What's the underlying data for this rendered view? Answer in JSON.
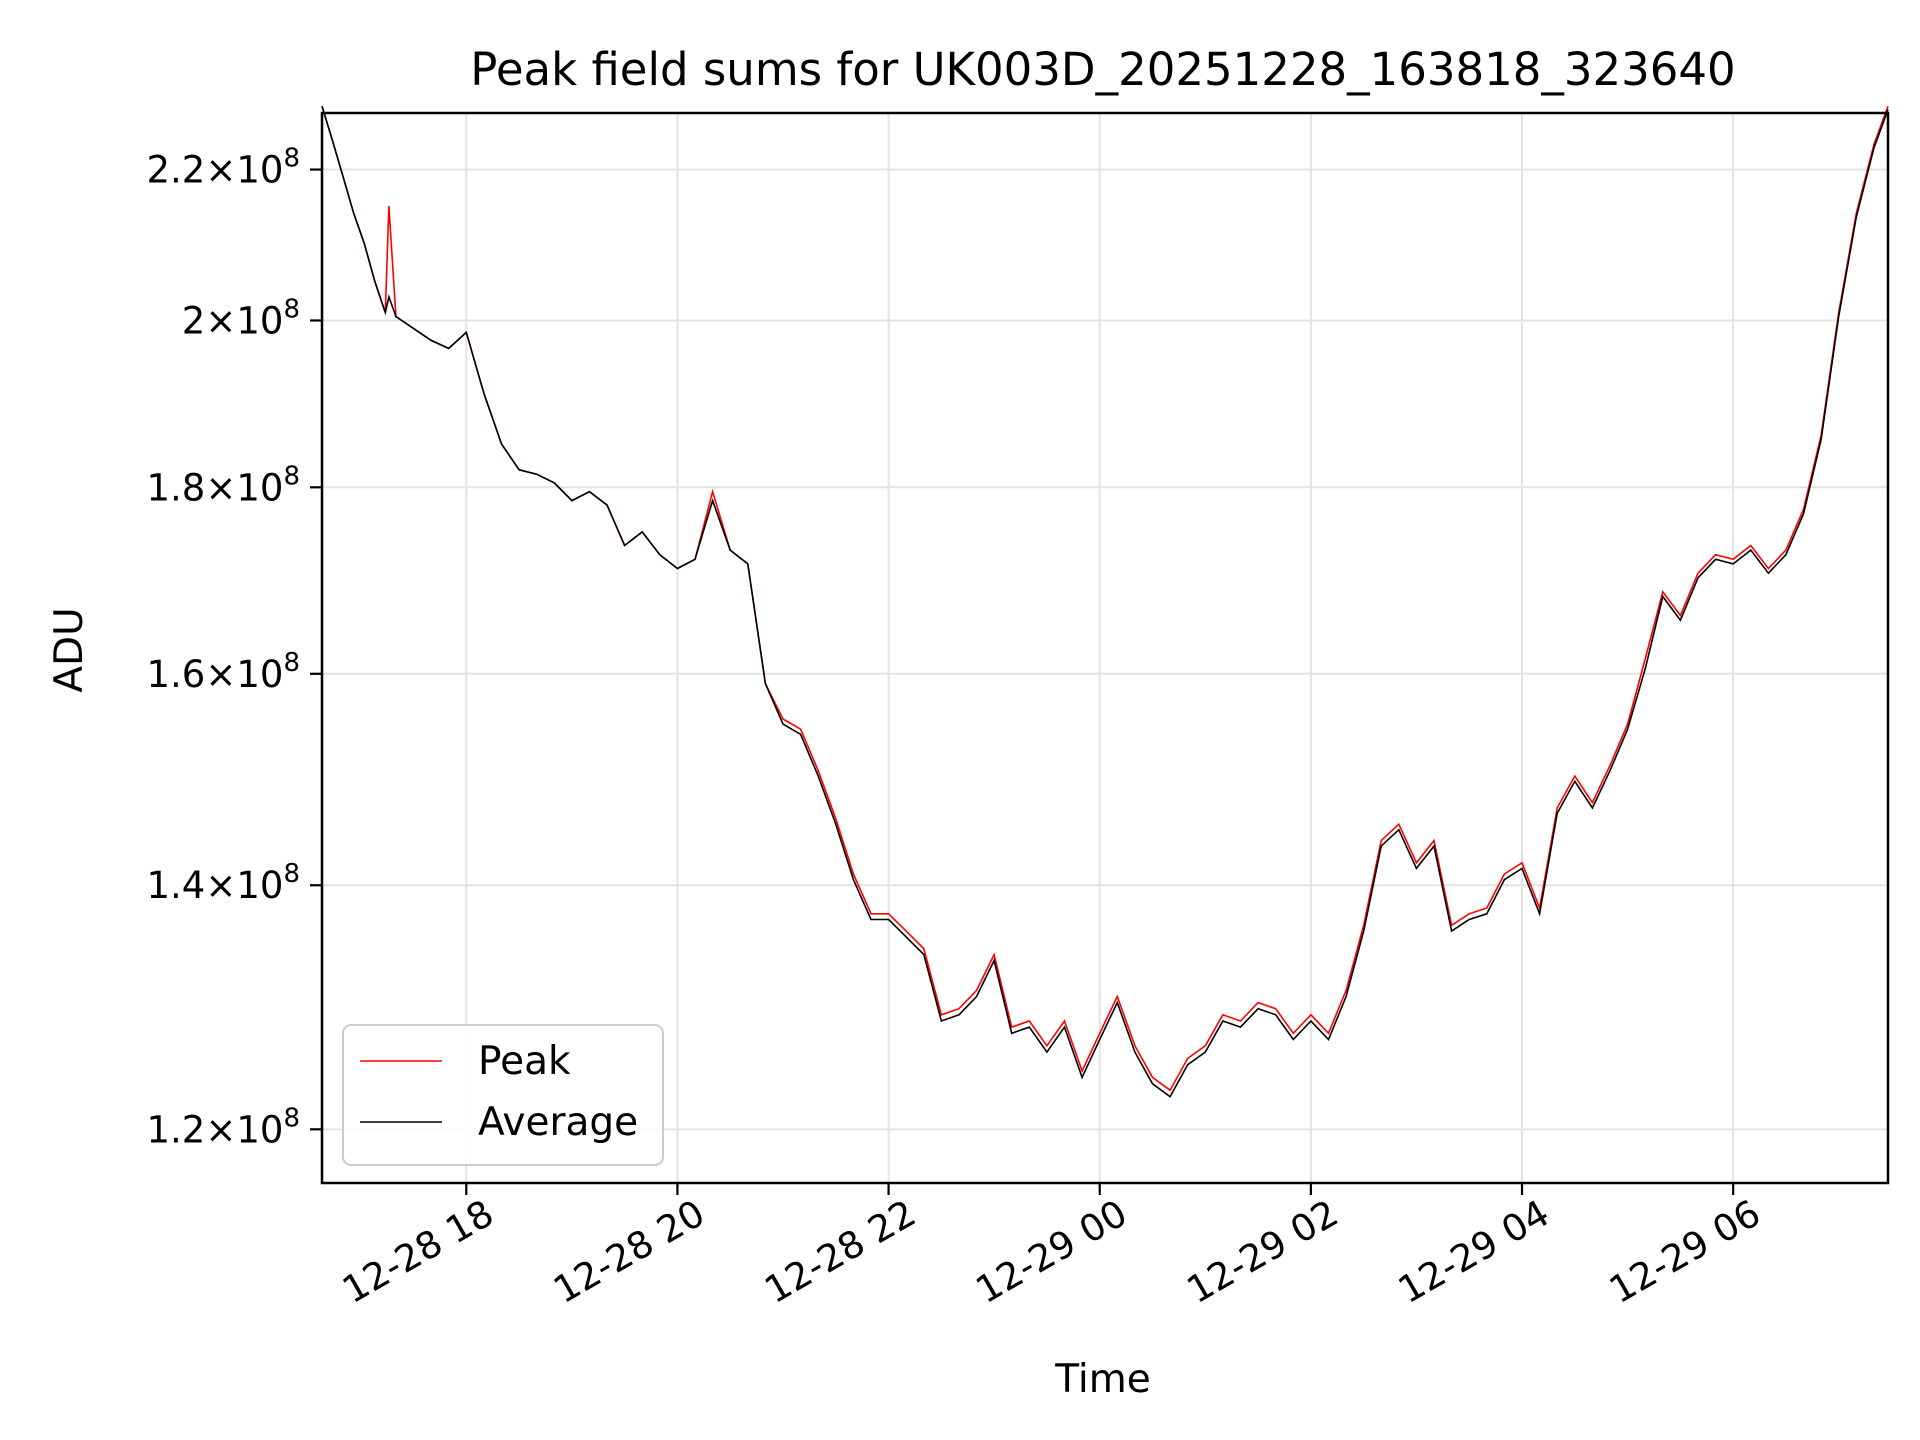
{
  "chart_data": {
    "type": "line",
    "title": "Peak field sums for UK003D_20251228_163818_323640",
    "xlabel": "Time",
    "ylabel": "ADU",
    "x_unit": "datetime",
    "xlim": [
      "2025-12-28 16:38",
      "2025-12-29 07:28"
    ],
    "ylim": [
      116000000,
      228000000
    ],
    "y_scale": "log",
    "grid": true,
    "legend_position": "lower-left",
    "x_ticks": [
      {
        "value": "2025-12-28 18:00",
        "label": "12-28 18"
      },
      {
        "value": "2025-12-28 20:00",
        "label": "12-28 20"
      },
      {
        "value": "2025-12-28 22:00",
        "label": "12-28 22"
      },
      {
        "value": "2025-12-29 00:00",
        "label": "12-29 00"
      },
      {
        "value": "2025-12-29 02:00",
        "label": "12-29 02"
      },
      {
        "value": "2025-12-29 04:00",
        "label": "12-29 04"
      },
      {
        "value": "2025-12-29 06:00",
        "label": "12-29 06"
      }
    ],
    "y_ticks": [
      {
        "value": 120000000,
        "mantissa": "1.2",
        "base": "10",
        "exponent": "8"
      },
      {
        "value": 140000000,
        "mantissa": "1.4",
        "base": "10",
        "exponent": "8"
      },
      {
        "value": 160000000,
        "mantissa": "1.6",
        "base": "10",
        "exponent": "8"
      },
      {
        "value": 180000000,
        "mantissa": "1.8",
        "base": "10",
        "exponent": "8"
      },
      {
        "value": 200000000,
        "mantissa": "2",
        "base": "10",
        "exponent": "8"
      },
      {
        "value": 220000000,
        "mantissa": "2.2",
        "base": "10",
        "exponent": "8"
      }
    ],
    "series": [
      {
        "name": "Peak",
        "color": "#ff0000",
        "x": [
          "2025-12-28 16:38",
          "2025-12-28 16:44",
          "2025-12-28 16:50",
          "2025-12-28 16:56",
          "2025-12-28 17:02",
          "2025-12-28 17:08",
          "2025-12-28 17:14",
          "2025-12-28 17:16",
          "2025-12-28 17:20",
          "2025-12-28 17:30",
          "2025-12-28 17:40",
          "2025-12-28 17:50",
          "2025-12-28 18:00",
          "2025-12-28 18:10",
          "2025-12-28 18:20",
          "2025-12-28 18:30",
          "2025-12-28 18:40",
          "2025-12-28 18:50",
          "2025-12-28 19:00",
          "2025-12-28 19:10",
          "2025-12-28 19:20",
          "2025-12-28 19:30",
          "2025-12-28 19:40",
          "2025-12-28 19:50",
          "2025-12-28 20:00",
          "2025-12-28 20:10",
          "2025-12-28 20:20",
          "2025-12-28 20:30",
          "2025-12-28 20:40",
          "2025-12-28 20:50",
          "2025-12-28 21:00",
          "2025-12-28 21:10",
          "2025-12-28 21:20",
          "2025-12-28 21:30",
          "2025-12-28 21:40",
          "2025-12-28 21:50",
          "2025-12-28 22:00",
          "2025-12-28 22:10",
          "2025-12-28 22:20",
          "2025-12-28 22:30",
          "2025-12-28 22:40",
          "2025-12-28 22:50",
          "2025-12-28 23:00",
          "2025-12-28 23:10",
          "2025-12-28 23:20",
          "2025-12-28 23:30",
          "2025-12-28 23:40",
          "2025-12-28 23:50",
          "2025-12-29 00:00",
          "2025-12-29 00:10",
          "2025-12-29 00:20",
          "2025-12-29 00:30",
          "2025-12-29 00:40",
          "2025-12-29 00:50",
          "2025-12-29 01:00",
          "2025-12-29 01:10",
          "2025-12-29 01:20",
          "2025-12-29 01:30",
          "2025-12-29 01:40",
          "2025-12-29 01:50",
          "2025-12-29 02:00",
          "2025-12-29 02:10",
          "2025-12-29 02:20",
          "2025-12-29 02:30",
          "2025-12-29 02:40",
          "2025-12-29 02:50",
          "2025-12-29 03:00",
          "2025-12-29 03:10",
          "2025-12-29 03:20",
          "2025-12-29 03:30",
          "2025-12-29 03:40",
          "2025-12-29 03:50",
          "2025-12-29 04:00",
          "2025-12-29 04:10",
          "2025-12-29 04:20",
          "2025-12-29 04:30",
          "2025-12-29 04:40",
          "2025-12-29 04:50",
          "2025-12-29 05:00",
          "2025-12-29 05:10",
          "2025-12-29 05:20",
          "2025-12-29 05:30",
          "2025-12-29 05:40",
          "2025-12-29 05:50",
          "2025-12-29 06:00",
          "2025-12-29 06:10",
          "2025-12-29 06:20",
          "2025-12-29 06:30",
          "2025-12-29 06:40",
          "2025-12-29 06:50",
          "2025-12-29 07:00",
          "2025-12-29 07:10",
          "2025-12-29 07:20",
          "2025-12-29 07:28"
        ],
        "values": [
          229000000,
          224000000,
          219000000,
          214000000,
          210000000,
          205000000,
          201000000,
          215000000,
          200500000,
          199000000,
          197500000,
          196500000,
          198500000,
          191000000,
          185000000,
          182000000,
          181500000,
          180500000,
          178500000,
          179500000,
          178000000,
          173500000,
          175000000,
          172500000,
          171000000,
          172000000,
          179500000,
          173000000,
          171500000,
          159000000,
          155500000,
          154500000,
          150500000,
          146000000,
          141000000,
          137500000,
          137500000,
          136000000,
          134500000,
          129000000,
          129500000,
          131000000,
          134000000,
          128000000,
          128500000,
          126500000,
          128500000,
          124500000,
          127500000,
          130500000,
          126500000,
          124000000,
          123000000,
          125500000,
          126500000,
          129000000,
          128500000,
          130000000,
          129500000,
          127500000,
          129000000,
          127500000,
          131000000,
          136500000,
          144000000,
          145500000,
          142000000,
          144000000,
          136500000,
          137500000,
          138000000,
          141000000,
          142000000,
          138000000,
          147000000,
          150000000,
          147500000,
          151000000,
          155000000,
          161500000,
          168500000,
          166000000,
          170500000,
          172500000,
          172000000,
          173500000,
          171000000,
          173000000,
          177500000,
          186000000,
          201000000,
          214000000,
          223500000,
          229000000
        ]
      },
      {
        "name": "Average",
        "color": "#000000",
        "x": [
          "2025-12-28 16:38",
          "2025-12-28 16:44",
          "2025-12-28 16:50",
          "2025-12-28 16:56",
          "2025-12-28 17:02",
          "2025-12-28 17:08",
          "2025-12-28 17:14",
          "2025-12-28 17:16",
          "2025-12-28 17:20",
          "2025-12-28 17:30",
          "2025-12-28 17:40",
          "2025-12-28 17:50",
          "2025-12-28 18:00",
          "2025-12-28 18:10",
          "2025-12-28 18:20",
          "2025-12-28 18:30",
          "2025-12-28 18:40",
          "2025-12-28 18:50",
          "2025-12-28 19:00",
          "2025-12-28 19:10",
          "2025-12-28 19:20",
          "2025-12-28 19:30",
          "2025-12-28 19:40",
          "2025-12-28 19:50",
          "2025-12-28 20:00",
          "2025-12-28 20:10",
          "2025-12-28 20:20",
          "2025-12-28 20:30",
          "2025-12-28 20:40",
          "2025-12-28 20:50",
          "2025-12-28 21:00",
          "2025-12-28 21:10",
          "2025-12-28 21:20",
          "2025-12-28 21:30",
          "2025-12-28 21:40",
          "2025-12-28 21:50",
          "2025-12-28 22:00",
          "2025-12-28 22:10",
          "2025-12-28 22:20",
          "2025-12-28 22:30",
          "2025-12-28 22:40",
          "2025-12-28 22:50",
          "2025-12-28 23:00",
          "2025-12-28 23:10",
          "2025-12-28 23:20",
          "2025-12-28 23:30",
          "2025-12-28 23:40",
          "2025-12-28 23:50",
          "2025-12-29 00:00",
          "2025-12-29 00:10",
          "2025-12-29 00:20",
          "2025-12-29 00:30",
          "2025-12-29 00:40",
          "2025-12-29 00:50",
          "2025-12-29 01:00",
          "2025-12-29 01:10",
          "2025-12-29 01:20",
          "2025-12-29 01:30",
          "2025-12-29 01:40",
          "2025-12-29 01:50",
          "2025-12-29 02:00",
          "2025-12-29 02:10",
          "2025-12-29 02:20",
          "2025-12-29 02:30",
          "2025-12-29 02:40",
          "2025-12-29 02:50",
          "2025-12-29 03:00",
          "2025-12-29 03:10",
          "2025-12-29 03:20",
          "2025-12-29 03:30",
          "2025-12-29 03:40",
          "2025-12-29 03:50",
          "2025-12-29 04:00",
          "2025-12-29 04:10",
          "2025-12-29 04:20",
          "2025-12-29 04:30",
          "2025-12-29 04:40",
          "2025-12-29 04:50",
          "2025-12-29 05:00",
          "2025-12-29 05:10",
          "2025-12-29 05:20",
          "2025-12-29 05:30",
          "2025-12-29 05:40",
          "2025-12-29 05:50",
          "2025-12-29 06:00",
          "2025-12-29 06:10",
          "2025-12-29 06:20",
          "2025-12-29 06:30",
          "2025-12-29 06:40",
          "2025-12-29 06:50",
          "2025-12-29 07:00",
          "2025-12-29 07:10",
          "2025-12-29 07:20",
          "2025-12-29 07:28"
        ],
        "values": [
          229000000,
          224000000,
          219000000,
          214000000,
          210000000,
          205000000,
          201000000,
          203000000,
          200500000,
          199000000,
          197500000,
          196500000,
          198500000,
          191000000,
          185000000,
          182000000,
          181500000,
          180500000,
          178500000,
          179500000,
          178000000,
          173500000,
          175000000,
          172500000,
          171000000,
          172000000,
          178500000,
          173000000,
          171500000,
          159000000,
          155000000,
          154000000,
          150000000,
          145500000,
          140500000,
          137000000,
          137000000,
          135500000,
          134000000,
          128500000,
          129000000,
          130500000,
          133500000,
          127500000,
          128000000,
          126000000,
          128000000,
          124000000,
          127000000,
          130000000,
          126000000,
          123500000,
          122500000,
          125000000,
          126000000,
          128500000,
          128000000,
          129500000,
          129000000,
          127000000,
          128500000,
          127000000,
          130500000,
          136000000,
          143500000,
          145000000,
          141500000,
          143500000,
          136000000,
          137000000,
          137500000,
          140500000,
          141500000,
          137500000,
          146500000,
          149500000,
          147000000,
          150500000,
          154500000,
          160500000,
          168000000,
          165500000,
          170000000,
          172000000,
          171500000,
          173000000,
          170500000,
          172500000,
          177000000,
          185500000,
          200500000,
          213500000,
          223000000,
          228500000
        ]
      }
    ]
  }
}
